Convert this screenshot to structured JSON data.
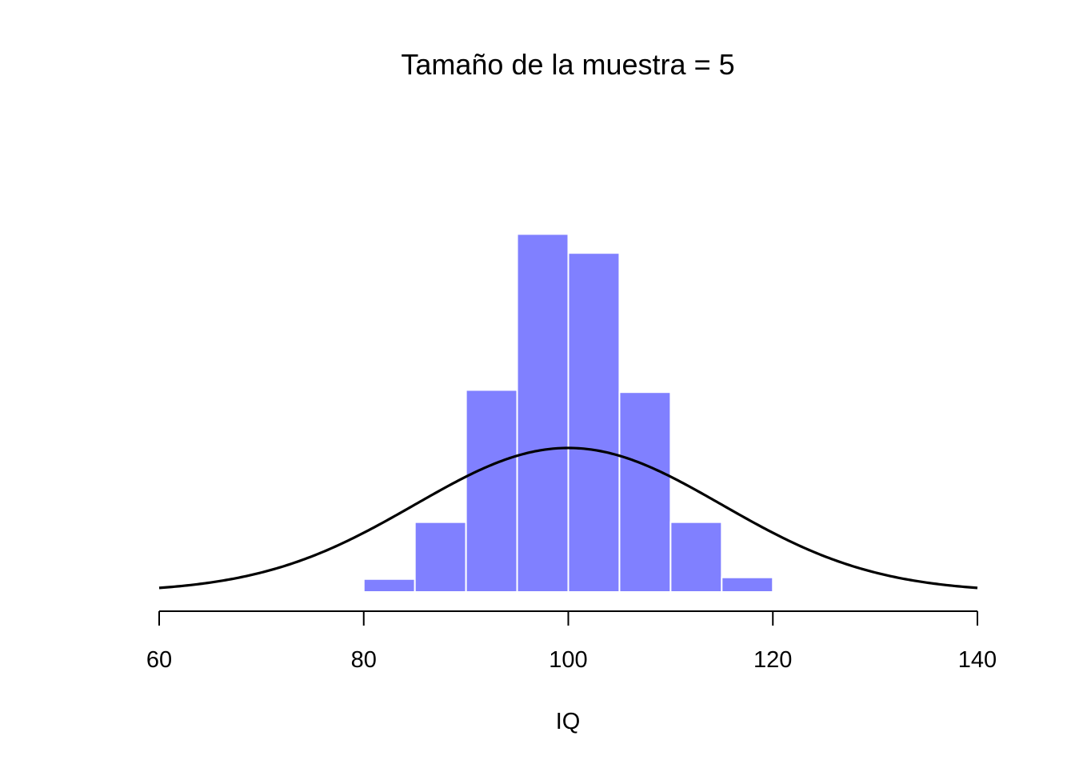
{
  "chart_data": {
    "type": "bar",
    "title": "Tamaño de la muestra = 5",
    "xlabel": "IQ",
    "ylabel": "",
    "xlim": [
      60,
      140
    ],
    "x_ticks": [
      60,
      80,
      100,
      120,
      140
    ],
    "x_tick_labels": [
      "60",
      "80",
      "100",
      "120",
      "140"
    ],
    "y_axis_visible": false,
    "grid": false,
    "histogram": {
      "bin_edges": [
        80,
        85,
        90,
        95,
        100,
        105,
        110,
        115,
        120
      ],
      "heights": [
        0.0024,
        0.0129,
        0.0373,
        0.0661,
        0.0626,
        0.0369,
        0.0129,
        0.0027
      ],
      "fill_color": "#8080FF",
      "edge_color": "#FFFFFF"
    },
    "curve": {
      "type": "normal_density",
      "mean": 100,
      "sd": 15,
      "x_range": [
        60,
        140
      ],
      "color": "#000000"
    }
  }
}
